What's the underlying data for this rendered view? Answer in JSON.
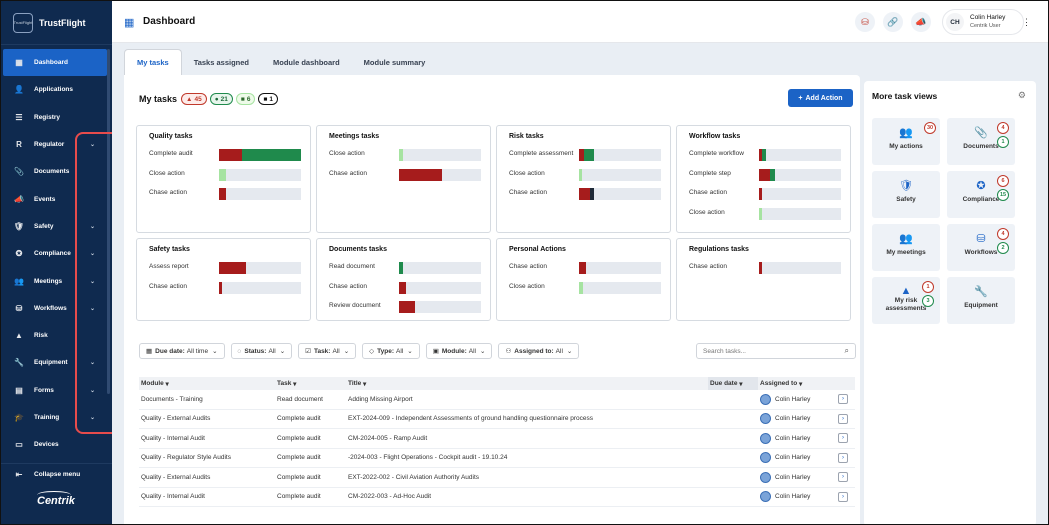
{
  "app": {
    "brand": "TrustFlight",
    "logo_text": "TrustFlight",
    "page_title": "Dashboard",
    "footer_brand": "Centrik"
  },
  "sidebar": {
    "items": [
      {
        "label": "Dashboard",
        "icon": "dashboard-icon",
        "glyph": "▦",
        "active": true,
        "chevron": false
      },
      {
        "label": "Applications",
        "icon": "person-icon",
        "glyph": "👤",
        "chevron": false
      },
      {
        "label": "Registry",
        "icon": "list-icon",
        "glyph": "☰",
        "chevron": false
      },
      {
        "label": "Regulator",
        "icon": "r-icon",
        "glyph": "R",
        "chevron": true
      },
      {
        "label": "Documents",
        "icon": "paperclip-icon",
        "glyph": "📎",
        "chevron": false
      },
      {
        "label": "Events",
        "icon": "megaphone-icon",
        "glyph": "📣",
        "chevron": false
      },
      {
        "label": "Safety",
        "icon": "shield-icon",
        "glyph": "🛡",
        "chevron": true
      },
      {
        "label": "Compliance",
        "icon": "badge-icon",
        "glyph": "✪",
        "chevron": true
      },
      {
        "label": "Meetings",
        "icon": "people-icon",
        "glyph": "👥",
        "chevron": true
      },
      {
        "label": "Workflows",
        "icon": "stack-icon",
        "glyph": "⛁",
        "chevron": true
      },
      {
        "label": "Risk",
        "icon": "triangle-icon",
        "glyph": "▲",
        "chevron": false
      },
      {
        "label": "Equipment",
        "icon": "wrench-icon",
        "glyph": "🔧",
        "chevron": true
      },
      {
        "label": "Forms",
        "icon": "form-icon",
        "glyph": "▤",
        "chevron": true
      },
      {
        "label": "Training",
        "icon": "graduation-cap-icon",
        "glyph": "🎓",
        "chevron": true
      },
      {
        "label": "Devices",
        "icon": "device-icon",
        "glyph": "▭",
        "chevron": false
      }
    ],
    "collapse_label": "Collapse menu"
  },
  "topbar": {
    "icons": [
      "stack-red-icon",
      "link-icon",
      "megaphone-icon"
    ],
    "user": {
      "initials": "CH",
      "name": "Colin Harley",
      "role": "Centrik User"
    }
  },
  "tabs": [
    {
      "label": "My tasks",
      "active": true
    },
    {
      "label": "Tasks assigned"
    },
    {
      "label": "Module dashboard"
    },
    {
      "label": "Module summary"
    }
  ],
  "my_tasks": {
    "title": "My tasks",
    "badges": [
      {
        "value": "45",
        "style": "red",
        "glyph": "▲"
      },
      {
        "value": "21",
        "style": "green",
        "glyph": "●"
      },
      {
        "value": "6",
        "style": "lgreen",
        "glyph": "■"
      },
      {
        "value": "1",
        "style": "dark",
        "glyph": "■"
      }
    ],
    "add_action": "Add Action"
  },
  "cards": [
    {
      "title": "Quality tasks",
      "rows": [
        {
          "label": "Complete audit",
          "segs": [
            {
              "w": 0.28,
              "c": "#a61c1c"
            },
            {
              "w": 0.72,
              "c": "#1f8a4c"
            }
          ]
        },
        {
          "label": "Close action",
          "segs": [
            {
              "w": 0.08,
              "c": "#a6e3a1"
            }
          ]
        },
        {
          "label": "Chase action",
          "segs": [
            {
              "w": 0.09,
              "c": "#a61c1c"
            }
          ]
        }
      ]
    },
    {
      "title": "Meetings tasks",
      "rows": [
        {
          "label": "Close action",
          "segs": [
            {
              "w": 0.05,
              "c": "#a6e3a1"
            }
          ]
        },
        {
          "label": "Chase action",
          "segs": [
            {
              "w": 0.52,
              "c": "#a61c1c"
            }
          ]
        }
      ]
    },
    {
      "title": "Risk tasks",
      "rows": [
        {
          "label": "Complete assessment",
          "segs": [
            {
              "w": 0.06,
              "c": "#a61c1c"
            },
            {
              "w": 0.12,
              "c": "#1f8a4c"
            }
          ]
        },
        {
          "label": "Close action",
          "segs": [
            {
              "w": 0.04,
              "c": "#a6e3a1"
            }
          ]
        },
        {
          "label": "Chase action",
          "segs": [
            {
              "w": 0.14,
              "c": "#a61c1c"
            },
            {
              "w": 0.04,
              "c": "#1f2937"
            }
          ]
        }
      ]
    },
    {
      "title": "Workflow tasks",
      "rows": [
        {
          "label": "Complete workflow",
          "segs": [
            {
              "w": 0.04,
              "c": "#a61c1c"
            },
            {
              "w": 0.04,
              "c": "#1f8a4c"
            }
          ]
        },
        {
          "label": "Complete step",
          "segs": [
            {
              "w": 0.13,
              "c": "#a61c1c"
            },
            {
              "w": 0.06,
              "c": "#1f8a4c"
            }
          ]
        },
        {
          "label": "Chase action",
          "segs": [
            {
              "w": 0.04,
              "c": "#a61c1c"
            }
          ]
        },
        {
          "label": "Close action",
          "segs": [
            {
              "w": 0.04,
              "c": "#a6e3a1"
            }
          ]
        }
      ]
    },
    {
      "title": "Safety tasks",
      "rows": [
        {
          "label": "Assess report",
          "segs": [
            {
              "w": 0.33,
              "c": "#a61c1c"
            }
          ]
        },
        {
          "label": "Chase action",
          "segs": [
            {
              "w": 0.04,
              "c": "#a61c1c"
            }
          ]
        }
      ]
    },
    {
      "title": "Documents tasks",
      "rows": [
        {
          "label": "Read document",
          "segs": [
            {
              "w": 0.05,
              "c": "#1f8a4c"
            }
          ]
        },
        {
          "label": "Chase action",
          "segs": [
            {
              "w": 0.09,
              "c": "#a61c1c"
            }
          ]
        },
        {
          "label": "Review document",
          "segs": [
            {
              "w": 0.19,
              "c": "#a61c1c"
            }
          ]
        }
      ]
    },
    {
      "title": "Personal Actions",
      "rows": [
        {
          "label": "Chase action",
          "segs": [
            {
              "w": 0.09,
              "c": "#a61c1c"
            }
          ]
        },
        {
          "label": "Close action",
          "segs": [
            {
              "w": 0.05,
              "c": "#a6e3a1"
            }
          ]
        }
      ]
    },
    {
      "title": "Regulations tasks",
      "rows": [
        {
          "label": "Chase action",
          "segs": [
            {
              "w": 0.04,
              "c": "#a61c1c"
            }
          ]
        }
      ]
    }
  ],
  "filters": [
    {
      "icon": "calendar-icon",
      "glyph": "▦",
      "key": "Due date:",
      "value": "All time"
    },
    {
      "icon": "status-icon",
      "glyph": "◌",
      "key": "Status:",
      "value": "All"
    },
    {
      "icon": "task-icon",
      "glyph": "☑",
      "key": "Task:",
      "value": "All"
    },
    {
      "icon": "tag-icon",
      "glyph": "◇",
      "key": "Type:",
      "value": "All"
    },
    {
      "icon": "module-icon",
      "glyph": "▣",
      "key": "Module:",
      "value": "All"
    },
    {
      "icon": "user-icon",
      "glyph": "⚇",
      "key": "Assigned to:",
      "value": "All"
    }
  ],
  "search": {
    "placeholder": "Search tasks..."
  },
  "table": {
    "headers": [
      "Module",
      "Task",
      "Title",
      "Due date",
      "Assigned to"
    ],
    "rows": [
      {
        "module": "Documents - Training",
        "task": "Read document",
        "title": "Adding Missing Airport",
        "due": "",
        "assignee": "Colin Harley"
      },
      {
        "module": "Quality - External Audits",
        "task": "Complete audit",
        "title": "EXT-2024-009 - Independent Assessments of ground handling questionnaire process",
        "due": "",
        "assignee": "Colin Harley"
      },
      {
        "module": "Quality - Internal Audit",
        "task": "Complete audit",
        "title": "CM-2024-005 - Ramp Audit",
        "due": "",
        "assignee": "Colin Harley"
      },
      {
        "module": "Quality - Regulator Style Audits",
        "task": "Complete audit",
        "title": "-2024-003 - Flight Operations - Cockpit audit - 19.10.24",
        "due": "",
        "assignee": "Colin Harley"
      },
      {
        "module": "Quality - External Audits",
        "task": "Complete audit",
        "title": "EXT-2022-002 - Civil Aviation Authority Audits",
        "due": "",
        "assignee": "Colin Harley"
      },
      {
        "module": "Quality - Internal Audit",
        "task": "Complete audit",
        "title": "CM-2022-003 - Ad-Hoc Audit",
        "due": "",
        "assignee": "Colin Harley"
      }
    ]
  },
  "more_views": {
    "title": "More task views",
    "tiles": [
      {
        "label": "My actions",
        "icon": "people-icon",
        "glyph": "👥",
        "counts": [
          {
            "v": "30",
            "s": "r"
          }
        ]
      },
      {
        "label": "Documents",
        "icon": "paperclip-icon",
        "glyph": "📎",
        "counts": [
          {
            "v": "4",
            "s": "r"
          },
          {
            "v": "1",
            "s": "g"
          }
        ]
      },
      {
        "label": "Safety",
        "icon": "shield-icon",
        "glyph": "🛡",
        "counts": []
      },
      {
        "label": "Compliance",
        "icon": "badge-icon",
        "glyph": "✪",
        "counts": [
          {
            "v": "6",
            "s": "r"
          },
          {
            "v": "15",
            "s": "g"
          }
        ]
      },
      {
        "label": "My meetings",
        "icon": "meeting-icon",
        "glyph": "👥",
        "counts": []
      },
      {
        "label": "Workflows",
        "icon": "stack-icon",
        "glyph": "⛁",
        "counts": [
          {
            "v": "4",
            "s": "r"
          },
          {
            "v": "2",
            "s": "g"
          }
        ]
      },
      {
        "label": "My risk assessments",
        "icon": "risk-icon",
        "glyph": "▲",
        "counts": [
          {
            "v": "1",
            "s": "r"
          },
          {
            "v": "3",
            "s": "g"
          }
        ]
      },
      {
        "label": "Equipment",
        "icon": "wrench-icon",
        "glyph": "🔧",
        "counts": []
      }
    ]
  }
}
